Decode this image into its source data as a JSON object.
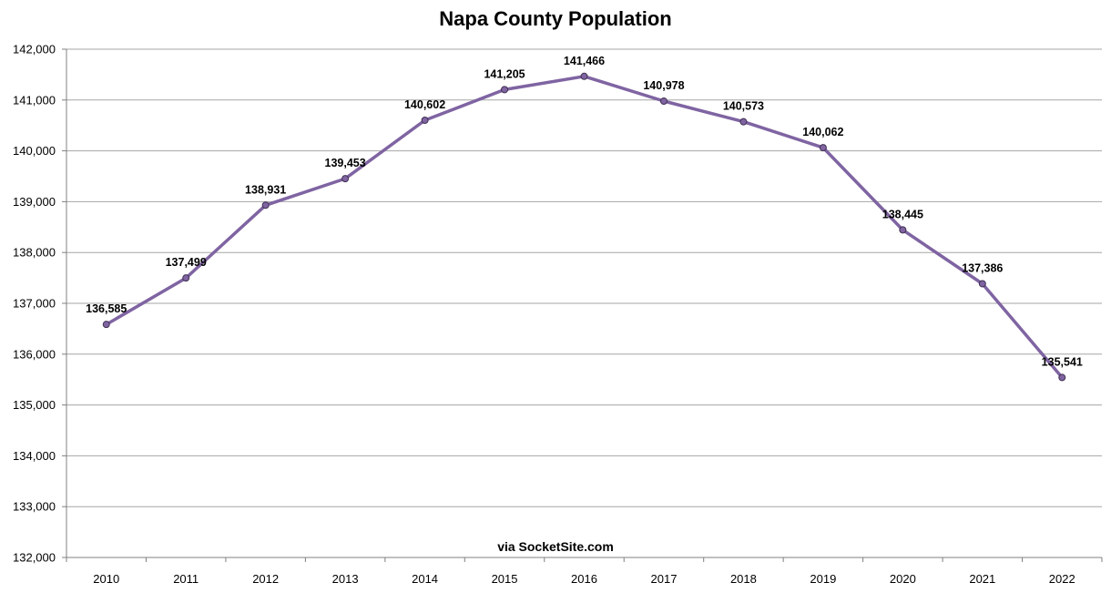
{
  "chart_data": {
    "type": "line",
    "title": "Napa County Population",
    "categories": [
      "2010",
      "2011",
      "2012",
      "2013",
      "2014",
      "2015",
      "2016",
      "2017",
      "2018",
      "2019",
      "2020",
      "2021",
      "2022"
    ],
    "series": [
      {
        "values": [
          136585,
          137499,
          138931,
          139453,
          140602,
          141205,
          141466,
          140978,
          140573,
          140062,
          138445,
          137386,
          135541
        ],
        "data_labels": [
          "136,585",
          "137,499",
          "138,931",
          "139,453",
          "140,602",
          "141,205",
          "141,466",
          "140,978",
          "140,573",
          "140,062",
          "138,445",
          "137,386",
          "135,541"
        ]
      }
    ],
    "ylim": [
      132000,
      142000
    ],
    "yticks": [
      132000,
      133000,
      134000,
      135000,
      136000,
      137000,
      138000,
      139000,
      140000,
      141000,
      142000
    ],
    "ytick_labels": [
      "132,000",
      "133,000",
      "134,000",
      "135,000",
      "136,000",
      "137,000",
      "138,000",
      "139,000",
      "140,000",
      "141,000",
      "142,000"
    ],
    "grid": true,
    "legend": "none",
    "line_color": "#7f64a2",
    "marker_fill": "#8064a2",
    "marker_stroke": "#3f3151",
    "annotation": "via SocketSite.com"
  }
}
